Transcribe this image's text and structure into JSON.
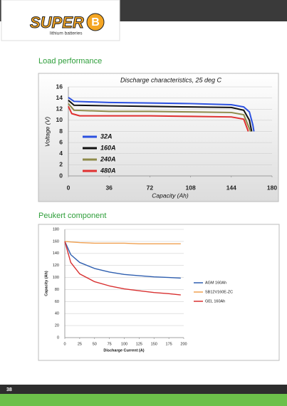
{
  "header": {
    "logo": "SUPER",
    "logo_mark": "B",
    "tagline": "lithium batteries"
  },
  "sections": [
    {
      "title": "Load performance"
    },
    {
      "title": "Peukert component"
    }
  ],
  "chart_data": [
    {
      "type": "line",
      "title": "Discharge characteristics, 25 deg C",
      "x_label": "Capacity (Ah)",
      "y_label": "Voltage (V)",
      "xlim": [
        0,
        180
      ],
      "xticks": [
        0,
        36,
        72,
        108,
        144,
        180
      ],
      "ylim": [
        0,
        16
      ],
      "yticks": [
        0,
        2,
        4,
        6,
        8,
        10,
        12,
        14,
        16
      ],
      "grid": true,
      "legend": "lower left",
      "series": [
        {
          "name": "32A",
          "color": "#2b50e0",
          "x": [
            0,
            5,
            36,
            72,
            108,
            144,
            155,
            160,
            163,
            164
          ],
          "values": [
            14.1,
            13.4,
            13.2,
            13.1,
            13.0,
            12.8,
            12.4,
            11.5,
            9.2,
            8.0
          ]
        },
        {
          "name": "160A",
          "color": "#111111",
          "x": [
            0,
            5,
            36,
            72,
            108,
            144,
            155,
            160,
            162
          ],
          "values": [
            13.6,
            12.7,
            12.6,
            12.5,
            12.4,
            12.3,
            11.8,
            10.0,
            8.0
          ]
        },
        {
          "name": "240A",
          "color": "#8e8a4a",
          "x": [
            0,
            5,
            36,
            72,
            108,
            144,
            155,
            159,
            161
          ],
          "values": [
            13.0,
            11.8,
            11.6,
            11.6,
            11.5,
            11.4,
            11.0,
            9.0,
            8.0
          ]
        },
        {
          "name": "480A",
          "color": "#e03030",
          "x": [
            0,
            3,
            10,
            36,
            72,
            108,
            144,
            155,
            159
          ],
          "values": [
            12.5,
            11.2,
            10.8,
            10.8,
            10.8,
            10.7,
            10.6,
            10.2,
            8.0
          ]
        }
      ]
    },
    {
      "type": "line",
      "x_label": "Discharge Current (A)",
      "y_label": "Capacity (Ah)",
      "xlim": [
        0,
        200
      ],
      "xticks": [
        0,
        25,
        50,
        75,
        100,
        125,
        150,
        175,
        200
      ],
      "ylim": [
        0,
        180
      ],
      "yticks": [
        0,
        20,
        40,
        60,
        80,
        100,
        120,
        140,
        160,
        180
      ],
      "grid": true,
      "legend": "right",
      "series": [
        {
          "name": "AGM 160Ah",
          "color": "#2f5fb0",
          "x": [
            0,
            10,
            25,
            50,
            75,
            100,
            125,
            150,
            175,
            195
          ],
          "values": [
            160,
            138,
            125,
            115,
            109,
            105,
            103,
            101,
            100,
            99
          ]
        },
        {
          "name": "SB12V160E-ZC",
          "color": "#f0a050",
          "x": [
            0,
            10,
            25,
            50,
            75,
            100,
            125,
            150,
            175,
            195
          ],
          "values": [
            160,
            159,
            158,
            157,
            157,
            157,
            156,
            156,
            156,
            156
          ]
        },
        {
          "name": "GEL 160Ah",
          "color": "#d83030",
          "x": [
            0,
            10,
            25,
            50,
            75,
            100,
            125,
            150,
            175,
            195
          ],
          "values": [
            160,
            125,
            106,
            93,
            86,
            81,
            78,
            75,
            73,
            71
          ]
        }
      ]
    }
  ],
  "footer": {
    "page_number": "38"
  }
}
